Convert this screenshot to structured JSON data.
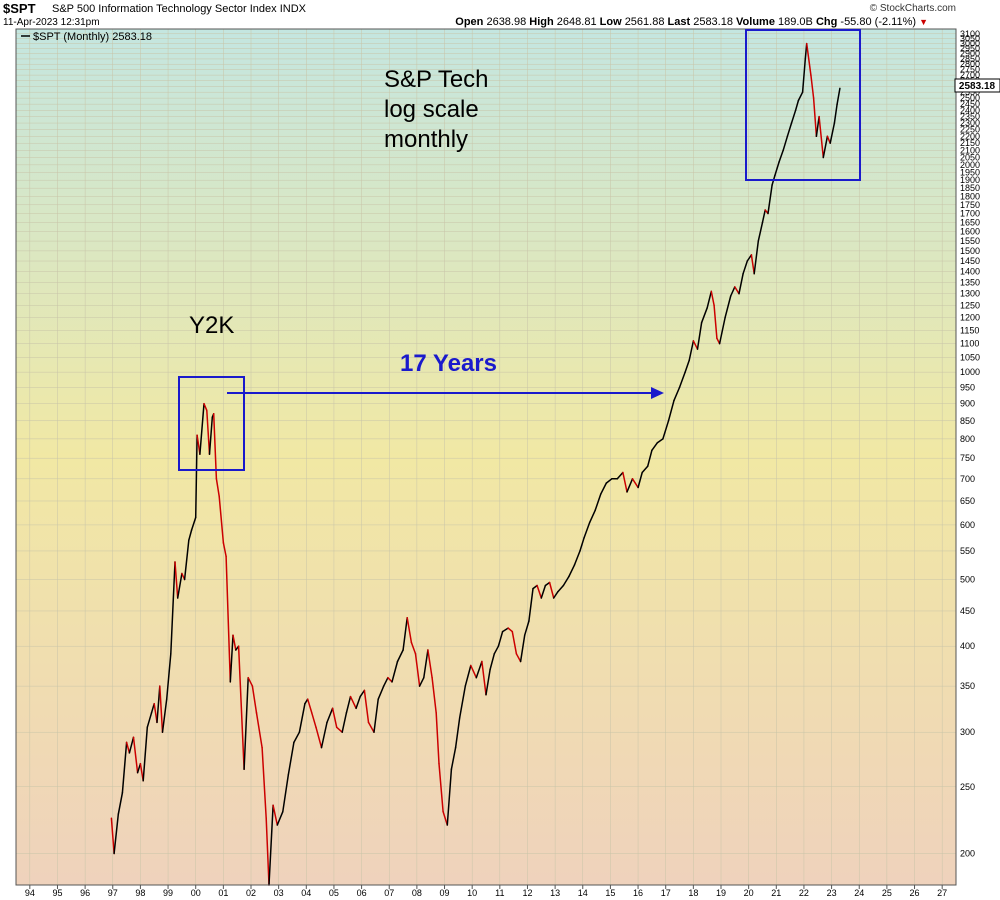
{
  "header": {
    "symbol": "$SPT",
    "name": "S&P 500 Information Technology Sector Index",
    "exchange": "INDX",
    "date": "11-Apr-2023 12:31pm",
    "source": "© StockCharts.com",
    "open_label": "Open",
    "open": "2638.98",
    "high_label": "High",
    "high": "2648.81",
    "low_label": "Low",
    "low": "2561.88",
    "last_label": "Last",
    "last": "2583.18",
    "volume_label": "Volume",
    "volume": "189.0B",
    "chg_label": "Chg",
    "chg": "-55.80 (-2.11%)",
    "chg_arrow": "▼"
  },
  "legend": {
    "text": "$SPT (Monthly) 2583.18"
  },
  "last_price_tag": "2583.18",
  "annotations": {
    "title_lines": [
      "S&P Tech",
      "log scale",
      "monthly"
    ],
    "y2k": "Y2K",
    "years": "17 Years"
  },
  "colors": {
    "up": "#000000",
    "down": "#cc0000",
    "annotation_blue": "#1a1acc",
    "bg_top": "#c4e6e0",
    "bg_mid": "#f1e8a4",
    "bg_bottom": "#efd2bc"
  },
  "chart_data": {
    "type": "line",
    "scale": "log",
    "x_tick_labels": [
      "94",
      "95",
      "96",
      "97",
      "98",
      "99",
      "00",
      "01",
      "02",
      "03",
      "04",
      "05",
      "06",
      "07",
      "08",
      "09",
      "10",
      "11",
      "12",
      "13",
      "14",
      "15",
      "16",
      "17",
      "18",
      "19",
      "20",
      "21",
      "22",
      "23",
      "24",
      "25",
      "26",
      "27"
    ],
    "y_tick_labels": [
      "200",
      "250",
      "300",
      "350",
      "400",
      "450",
      "500",
      "550",
      "600",
      "650",
      "700",
      "750",
      "800",
      "850",
      "900",
      "950",
      "1000",
      "1050",
      "1100",
      "1150",
      "1200",
      "1250",
      "1300",
      "1350",
      "1400",
      "1450",
      "1500",
      "1550",
      "1600",
      "1650",
      "1700",
      "1750",
      "1800",
      "1850",
      "1900",
      "1950",
      "2000",
      "2050",
      "2100",
      "2150",
      "2200",
      "2250",
      "2300",
      "2350",
      "2400",
      "2450",
      "2500",
      "2550",
      "2600",
      "2650",
      "2700",
      "2750",
      "2800",
      "2850",
      "2900",
      "2950",
      "3000",
      "3050",
      "3100"
    ],
    "ylim": [
      180,
      3150
    ],
    "xlim": [
      1993.5,
      2027.5
    ],
    "series": [
      {
        "points": [
          [
            1996.95,
            225
          ],
          [
            1997.05,
            200
          ],
          [
            1997.2,
            228
          ],
          [
            1997.35,
            245
          ],
          [
            1997.5,
            290
          ],
          [
            1997.6,
            280
          ],
          [
            1997.75,
            295
          ],
          [
            1997.9,
            262
          ],
          [
            1998.0,
            270
          ],
          [
            1998.1,
            255
          ],
          [
            1998.25,
            305
          ],
          [
            1998.4,
            320
          ],
          [
            1998.5,
            330
          ],
          [
            1998.6,
            310
          ],
          [
            1998.7,
            350
          ],
          [
            1998.8,
            300
          ],
          [
            1998.95,
            335
          ],
          [
            1999.1,
            390
          ],
          [
            1999.25,
            530
          ],
          [
            1999.35,
            470
          ],
          [
            1999.5,
            510
          ],
          [
            1999.6,
            500
          ],
          [
            1999.75,
            570
          ],
          [
            1999.85,
            590
          ],
          [
            2000.0,
            615
          ],
          [
            2000.05,
            810
          ],
          [
            2000.15,
            760
          ],
          [
            2000.3,
            900
          ],
          [
            2000.4,
            880
          ],
          [
            2000.5,
            760
          ],
          [
            2000.6,
            860
          ],
          [
            2000.65,
            870
          ],
          [
            2000.75,
            700
          ],
          [
            2000.85,
            660
          ],
          [
            2001.0,
            565
          ],
          [
            2001.1,
            540
          ],
          [
            2001.25,
            355
          ],
          [
            2001.35,
            415
          ],
          [
            2001.45,
            395
          ],
          [
            2001.55,
            400
          ],
          [
            2001.75,
            265
          ],
          [
            2001.9,
            360
          ],
          [
            2002.05,
            350
          ],
          [
            2002.2,
            320
          ],
          [
            2002.4,
            285
          ],
          [
            2002.55,
            225
          ],
          [
            2002.65,
            180
          ],
          [
            2002.8,
            235
          ],
          [
            2002.95,
            220
          ],
          [
            2003.15,
            230
          ],
          [
            2003.35,
            260
          ],
          [
            2003.55,
            290
          ],
          [
            2003.75,
            300
          ],
          [
            2003.95,
            330
          ],
          [
            2004.05,
            335
          ],
          [
            2004.2,
            320
          ],
          [
            2004.35,
            305
          ],
          [
            2004.55,
            285
          ],
          [
            2004.75,
            310
          ],
          [
            2004.95,
            325
          ],
          [
            2005.1,
            305
          ],
          [
            2005.3,
            300
          ],
          [
            2005.45,
            320
          ],
          [
            2005.6,
            338
          ],
          [
            2005.8,
            325
          ],
          [
            2005.95,
            338
          ],
          [
            2006.1,
            345
          ],
          [
            2006.25,
            310
          ],
          [
            2006.45,
            300
          ],
          [
            2006.6,
            335
          ],
          [
            2006.8,
            350
          ],
          [
            2006.95,
            360
          ],
          [
            2007.1,
            355
          ],
          [
            2007.3,
            380
          ],
          [
            2007.5,
            395
          ],
          [
            2007.65,
            440
          ],
          [
            2007.8,
            405
          ],
          [
            2007.95,
            390
          ],
          [
            2008.1,
            350
          ],
          [
            2008.25,
            360
          ],
          [
            2008.4,
            395
          ],
          [
            2008.55,
            360
          ],
          [
            2008.7,
            320
          ],
          [
            2008.8,
            270
          ],
          [
            2008.95,
            230
          ],
          [
            2009.1,
            220
          ],
          [
            2009.25,
            265
          ],
          [
            2009.4,
            285
          ],
          [
            2009.55,
            315
          ],
          [
            2009.75,
            350
          ],
          [
            2009.95,
            375
          ],
          [
            2010.15,
            360
          ],
          [
            2010.35,
            380
          ],
          [
            2010.5,
            340
          ],
          [
            2010.65,
            370
          ],
          [
            2010.8,
            390
          ],
          [
            2010.95,
            400
          ],
          [
            2011.1,
            420
          ],
          [
            2011.3,
            425
          ],
          [
            2011.45,
            420
          ],
          [
            2011.6,
            390
          ],
          [
            2011.75,
            380
          ],
          [
            2011.9,
            415
          ],
          [
            2012.05,
            435
          ],
          [
            2012.2,
            485
          ],
          [
            2012.35,
            490
          ],
          [
            2012.5,
            470
          ],
          [
            2012.65,
            490
          ],
          [
            2012.8,
            495
          ],
          [
            2012.95,
            470
          ],
          [
            2013.1,
            480
          ],
          [
            2013.3,
            490
          ],
          [
            2013.5,
            505
          ],
          [
            2013.7,
            525
          ],
          [
            2013.9,
            550
          ],
          [
            2014.05,
            575
          ],
          [
            2014.25,
            605
          ],
          [
            2014.45,
            630
          ],
          [
            2014.65,
            665
          ],
          [
            2014.85,
            690
          ],
          [
            2015.05,
            700
          ],
          [
            2015.25,
            700
          ],
          [
            2015.45,
            715
          ],
          [
            2015.6,
            670
          ],
          [
            2015.8,
            700
          ],
          [
            2016.0,
            680
          ],
          [
            2016.15,
            715
          ],
          [
            2016.35,
            730
          ],
          [
            2016.5,
            770
          ],
          [
            2016.7,
            790
          ],
          [
            2016.9,
            800
          ],
          [
            2017.1,
            850
          ],
          [
            2017.3,
            910
          ],
          [
            2017.5,
            950
          ],
          [
            2017.7,
            1000
          ],
          [
            2017.85,
            1040
          ],
          [
            2018.0,
            1110
          ],
          [
            2018.15,
            1080
          ],
          [
            2018.3,
            1180
          ],
          [
            2018.5,
            1240
          ],
          [
            2018.65,
            1310
          ],
          [
            2018.75,
            1250
          ],
          [
            2018.85,
            1120
          ],
          [
            2018.95,
            1100
          ],
          [
            2019.15,
            1200
          ],
          [
            2019.35,
            1290
          ],
          [
            2019.5,
            1330
          ],
          [
            2019.65,
            1300
          ],
          [
            2019.8,
            1390
          ],
          [
            2019.95,
            1450
          ],
          [
            2020.1,
            1480
          ],
          [
            2020.2,
            1390
          ],
          [
            2020.35,
            1550
          ],
          [
            2020.5,
            1650
          ],
          [
            2020.6,
            1720
          ],
          [
            2020.7,
            1700
          ],
          [
            2020.85,
            1870
          ],
          [
            2020.95,
            1930
          ],
          [
            2021.1,
            2020
          ],
          [
            2021.25,
            2100
          ],
          [
            2021.4,
            2200
          ],
          [
            2021.55,
            2300
          ],
          [
            2021.7,
            2400
          ],
          [
            2021.8,
            2480
          ],
          [
            2021.95,
            2550
          ],
          [
            2022.05,
            2850
          ],
          [
            2022.1,
            3000
          ],
          [
            2022.25,
            2700
          ],
          [
            2022.35,
            2500
          ],
          [
            2022.45,
            2200
          ],
          [
            2022.55,
            2350
          ],
          [
            2022.7,
            2050
          ],
          [
            2022.85,
            2200
          ],
          [
            2022.95,
            2150
          ],
          [
            2023.1,
            2300
          ],
          [
            2023.2,
            2450
          ],
          [
            2023.3,
            2583
          ]
        ]
      }
    ]
  }
}
